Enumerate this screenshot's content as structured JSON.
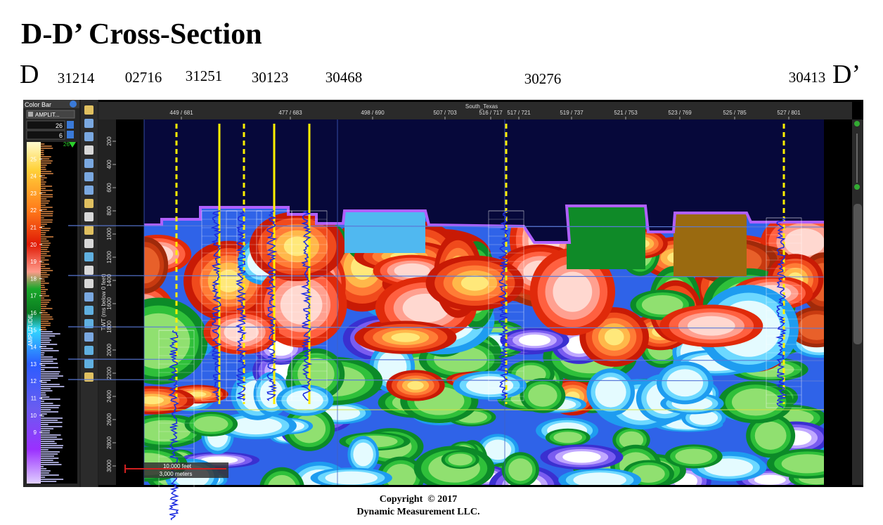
{
  "header": {
    "title": "D-D’ Cross-Section",
    "left_label": "D",
    "right_label": "D’",
    "wells": [
      "31214",
      "02716",
      "31251",
      "30123",
      "30468",
      "30276",
      "30413"
    ]
  },
  "app": {
    "color_bar": {
      "title": "Color Bar",
      "attribute": "AMPLIT...",
      "max": 26,
      "min": 6,
      "ticks": [
        25,
        24,
        23,
        22,
        21,
        20,
        19,
        18,
        17,
        16,
        15,
        14,
        13,
        12,
        11,
        10,
        9
      ],
      "axis_label": "AMPLITUDE"
    },
    "section": {
      "survey": "South_Texas",
      "traces": [
        "449 / 681",
        "477 / 683",
        "498 / 690",
        "507 / 703",
        "516 / 717",
        "517 / 721",
        "519 / 737",
        "521 / 753",
        "523 / 769",
        "525 / 785",
        "527 / 801"
      ],
      "y_ticks": [
        200,
        400,
        600,
        800,
        1000,
        1200,
        1400,
        1600,
        1800,
        2000,
        2200,
        2400,
        2600,
        2800,
        3000
      ],
      "y_label": "TWT (ms below 0 feet)",
      "scale": [
        "10,000 feet",
        "3,000 meters"
      ]
    }
  },
  "footer": {
    "copyright": "Copyright  © 2017",
    "company": "Dynamic Measurement LLC."
  }
}
